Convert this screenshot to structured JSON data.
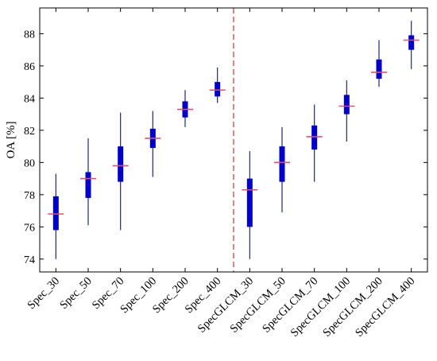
{
  "chart_data": {
    "type": "box",
    "ylabel": "OA [%]",
    "xlabel": "",
    "title": "",
    "ylim": [
      73.2,
      89.6
    ],
    "yticks": [
      74,
      76,
      78,
      80,
      82,
      84,
      86,
      88
    ],
    "grid": false,
    "categories": [
      "Spec_30",
      "Spec_50",
      "Spec_70",
      "Spec_100",
      "Spec_200",
      "Spec_400",
      "SpecGLCM_30",
      "SpecGLCM_50",
      "SpecGLCM_70",
      "SpecGLCM_100",
      "SpecGLCM_200",
      "SpecGLCM_400"
    ],
    "boxes": [
      {
        "min": 74.0,
        "q1": 75.8,
        "median": 76.8,
        "q3": 77.9,
        "max": 79.3
      },
      {
        "min": 76.1,
        "q1": 77.8,
        "median": 79.0,
        "q3": 79.4,
        "max": 81.5
      },
      {
        "min": 75.8,
        "q1": 78.8,
        "median": 79.8,
        "q3": 81.0,
        "max": 83.1
      },
      {
        "min": 79.1,
        "q1": 80.9,
        "median": 81.5,
        "q3": 82.1,
        "max": 83.2
      },
      {
        "min": 82.2,
        "q1": 82.8,
        "median": 83.3,
        "q3": 83.8,
        "max": 84.5
      },
      {
        "min": 83.7,
        "q1": 84.1,
        "median": 84.5,
        "q3": 85.0,
        "max": 85.9
      },
      {
        "min": 74.0,
        "q1": 76.0,
        "median": 78.3,
        "q3": 79.0,
        "max": 80.7
      },
      {
        "min": 76.9,
        "q1": 78.8,
        "median": 80.0,
        "q3": 81.0,
        "max": 82.2
      },
      {
        "min": 78.8,
        "q1": 80.8,
        "median": 81.6,
        "q3": 82.3,
        "max": 83.6
      },
      {
        "min": 81.3,
        "q1": 83.0,
        "median": 83.5,
        "q3": 84.2,
        "max": 85.1
      },
      {
        "min": 84.7,
        "q1": 85.2,
        "median": 85.6,
        "q3": 86.4,
        "max": 87.6
      },
      {
        "min": 85.8,
        "q1": 87.0,
        "median": 87.6,
        "q3": 87.9,
        "max": 88.8
      }
    ],
    "separator_after_index": 5,
    "colors": {
      "box": "#0000cc",
      "whisker": "#1f2a6b",
      "median": "#e0506a",
      "separator": "#d05050",
      "axis": "#000000"
    }
  }
}
